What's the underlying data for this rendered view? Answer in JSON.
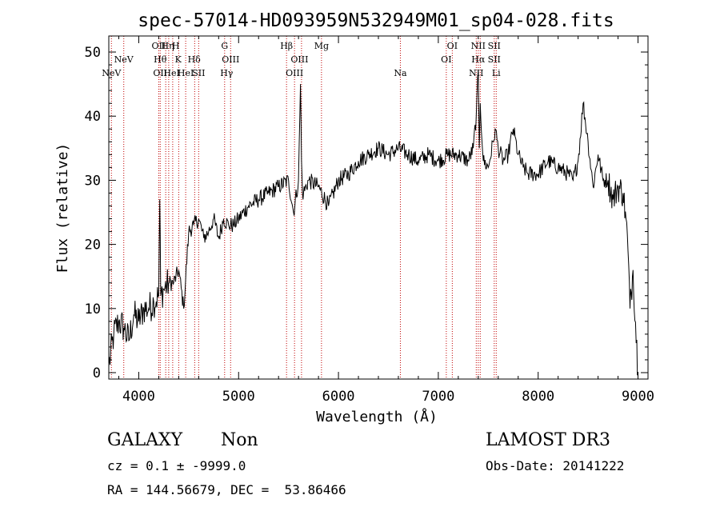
{
  "chart_data": {
    "type": "line",
    "title": "spec-57014-HD093959N532949M01_sp04-028.fits",
    "xlabel": "Wavelength (Å)",
    "ylabel": "Flux (relative)",
    "xlim": [
      3700,
      9100
    ],
    "ylim": [
      -1,
      52.5
    ],
    "xticks": [
      4000,
      5000,
      6000,
      7000,
      8000,
      9000
    ],
    "yticks": [
      0,
      10,
      20,
      30,
      40,
      50
    ],
    "grid": false,
    "series": [
      {
        "name": "flux",
        "x": [
          3700,
          3750,
          3800,
          3850,
          3900,
          3950,
          4000,
          4050,
          4100,
          4150,
          4200,
          4210,
          4220,
          4250,
          4300,
          4350,
          4400,
          4450,
          4500,
          4550,
          4600,
          4650,
          4700,
          4750,
          4800,
          4850,
          4900,
          4950,
          5000,
          5100,
          5200,
          5300,
          5400,
          5500,
          5550,
          5600,
          5620,
          5630,
          5640,
          5650,
          5700,
          5800,
          5900,
          6000,
          6100,
          6200,
          6300,
          6400,
          6500,
          6600,
          6700,
          6800,
          6900,
          7000,
          7100,
          7200,
          7300,
          7350,
          7380,
          7400,
          7410,
          7420,
          7450,
          7500,
          7550,
          7570,
          7600,
          7650,
          7700,
          7750,
          7800,
          7850,
          7900,
          8000,
          8100,
          8200,
          8300,
          8350,
          8400,
          8450,
          8500,
          8550,
          8600,
          8650,
          8700,
          8750,
          8800,
          8850,
          8880,
          8900,
          8920,
          8950,
          9000
        ],
        "y": [
          1,
          6,
          8,
          7,
          5,
          9,
          8,
          10,
          10,
          11,
          12,
          27,
          12,
          13,
          14,
          14,
          16,
          10,
          22,
          23,
          24,
          21,
          22,
          24,
          21,
          24,
          23,
          23,
          24,
          26,
          27,
          28,
          29,
          30,
          25,
          30,
          45,
          33,
          28,
          28,
          30,
          29,
          26,
          30,
          31,
          33,
          34,
          35,
          34,
          35,
          34,
          33,
          34,
          33,
          34,
          34,
          33,
          35,
          40,
          47,
          35,
          42,
          33,
          32,
          36,
          38,
          35,
          33,
          34,
          38,
          34,
          32,
          31,
          31,
          33,
          32,
          31,
          30,
          33,
          42,
          36,
          29,
          34,
          30,
          30,
          27,
          29,
          28,
          24,
          19,
          10,
          16,
          0
        ]
      }
    ],
    "line_labels": [
      {
        "name": "NeV",
        "x": 3726,
        "row": 2
      },
      {
        "name": "NeV",
        "x": 3850,
        "row": 1
      },
      {
        "name": "OII",
        "x": 4200,
        "row": 0
      },
      {
        "name": "Hθ",
        "x": 4215,
        "row": 1
      },
      {
        "name": "OII",
        "x": 4215,
        "row": 2
      },
      {
        "name": "Hη",
        "x": 4290,
        "row": 0
      },
      {
        "name": "HeI",
        "x": 4330,
        "row": 2
      },
      {
        "name": "H",
        "x": 4370,
        "row": 0
      },
      {
        "name": "K",
        "x": 4395,
        "row": 1
      },
      {
        "name": "HeI",
        "x": 4470,
        "row": 2
      },
      {
        "name": "Hδ",
        "x": 4555,
        "row": 1
      },
      {
        "name": "SII",
        "x": 4600,
        "row": 2
      },
      {
        "name": "G",
        "x": 4860,
        "row": 0
      },
      {
        "name": "OIII",
        "x": 4920,
        "row": 1
      },
      {
        "name": "Hγ",
        "x": 4880,
        "row": 2
      },
      {
        "name": "Hβ",
        "x": 5480,
        "row": 0
      },
      {
        "name": "OIII",
        "x": 5610,
        "row": 1
      },
      {
        "name": "OIII",
        "x": 5560,
        "row": 2
      },
      {
        "name": "Mg",
        "x": 5830,
        "row": 0
      },
      {
        "name": "Na",
        "x": 6620,
        "row": 2
      },
      {
        "name": "OI",
        "x": 7140,
        "row": 0
      },
      {
        "name": "OI",
        "x": 7080,
        "row": 1
      },
      {
        "name": "NII",
        "x": 7400,
        "row": 0
      },
      {
        "name": "Hα",
        "x": 7400,
        "row": 1
      },
      {
        "name": "NII",
        "x": 7380,
        "row": 2
      },
      {
        "name": "SII",
        "x": 7560,
        "row": 0
      },
      {
        "name": "SII",
        "x": 7560,
        "row": 1
      },
      {
        "name": "Li",
        "x": 7580,
        "row": 2
      }
    ],
    "line_markers": [
      3726,
      3850,
      4200,
      4215,
      4270,
      4300,
      4340,
      4400,
      4470,
      4560,
      4600,
      4860,
      4920,
      5480,
      5560,
      5630,
      5830,
      6620,
      7080,
      7140,
      7380,
      7400,
      7420,
      7560,
      7580
    ]
  },
  "info": {
    "class": "GALAXY",
    "subclass": "Non",
    "cz": "cz = 0.1 ± -9999.0",
    "radec": "RA = 144.56679, DEC =  53.86466",
    "survey": "LAMOST DR3",
    "obs_date": "Obs-Date: 20141222"
  }
}
